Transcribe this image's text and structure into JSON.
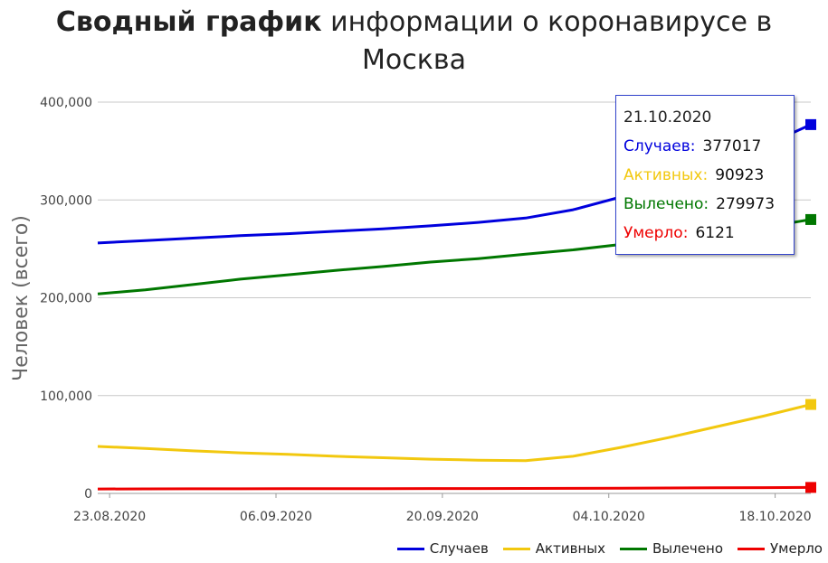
{
  "header": {
    "title_bold": "Сводный график",
    "title_rest_line1": " информации о коронавирусе в",
    "title_line2": "Москва"
  },
  "tooltip": {
    "date": "21.10.2020",
    "rows": [
      {
        "label": "Случаев:",
        "value": "377017",
        "color": "#0000dd"
      },
      {
        "label": "Активных:",
        "value": "90923",
        "color": "#f2c80f"
      },
      {
        "label": "Вылечено:",
        "value": "279973",
        "color": "#007700"
      },
      {
        "label": "Умерло:",
        "value": "6121",
        "color": "#ee0000"
      }
    ]
  },
  "chart_data": {
    "type": "line",
    "ylabel": "Человек (всего)",
    "xlabel": "",
    "ylim": [
      0,
      400000
    ],
    "yticks": [
      0,
      100000,
      200000,
      300000,
      400000
    ],
    "ytick_labels": [
      "0",
      "100,000",
      "200,000",
      "300,000",
      "400,000"
    ],
    "xticks": [
      "2020-08-23",
      "2020-09-06",
      "2020-09-20",
      "2020-10-04",
      "2020-10-18"
    ],
    "xtick_labels": [
      "23.08.2020",
      "06.09.2020",
      "20.09.2020",
      "04.10.2020",
      "18.10.2020"
    ],
    "xlim": [
      "2020-08-22",
      "2020-10-21"
    ],
    "grid": true,
    "legend_position": "bottom-right",
    "x": [
      "2020-08-22",
      "2020-08-26",
      "2020-08-30",
      "2020-09-03",
      "2020-09-07",
      "2020-09-11",
      "2020-09-15",
      "2020-09-19",
      "2020-09-23",
      "2020-09-27",
      "2020-10-01",
      "2020-10-05",
      "2020-10-09",
      "2020-10-13",
      "2020-10-17",
      "2020-10-21"
    ],
    "series": [
      {
        "name": "Случаев",
        "color": "#0000dd",
        "values": [
          256000,
          258500,
          261000,
          263500,
          265500,
          268000,
          270500,
          273500,
          277000,
          281500,
          290000,
          303000,
          318000,
          336000,
          355000,
          377017
        ]
      },
      {
        "name": "Активных",
        "color": "#f2c80f",
        "values": [
          48000,
          46000,
          43500,
          41500,
          40000,
          38000,
          36500,
          35000,
          34000,
          33500,
          38000,
          47000,
          57000,
          68000,
          79000,
          90923
        ]
      },
      {
        "name": "Вылечено",
        "color": "#007700",
        "values": [
          204000,
          208000,
          213500,
          219000,
          223500,
          228000,
          232000,
          236500,
          240000,
          244500,
          249000,
          254500,
          259500,
          265000,
          272000,
          279973
        ]
      },
      {
        "name": "Умерло",
        "color": "#ee0000",
        "values": [
          4500,
          4600,
          4700,
          4750,
          4800,
          4850,
          4900,
          4950,
          5000,
          5050,
          5200,
          5350,
          5550,
          5750,
          5950,
          6121
        ]
      }
    ]
  }
}
